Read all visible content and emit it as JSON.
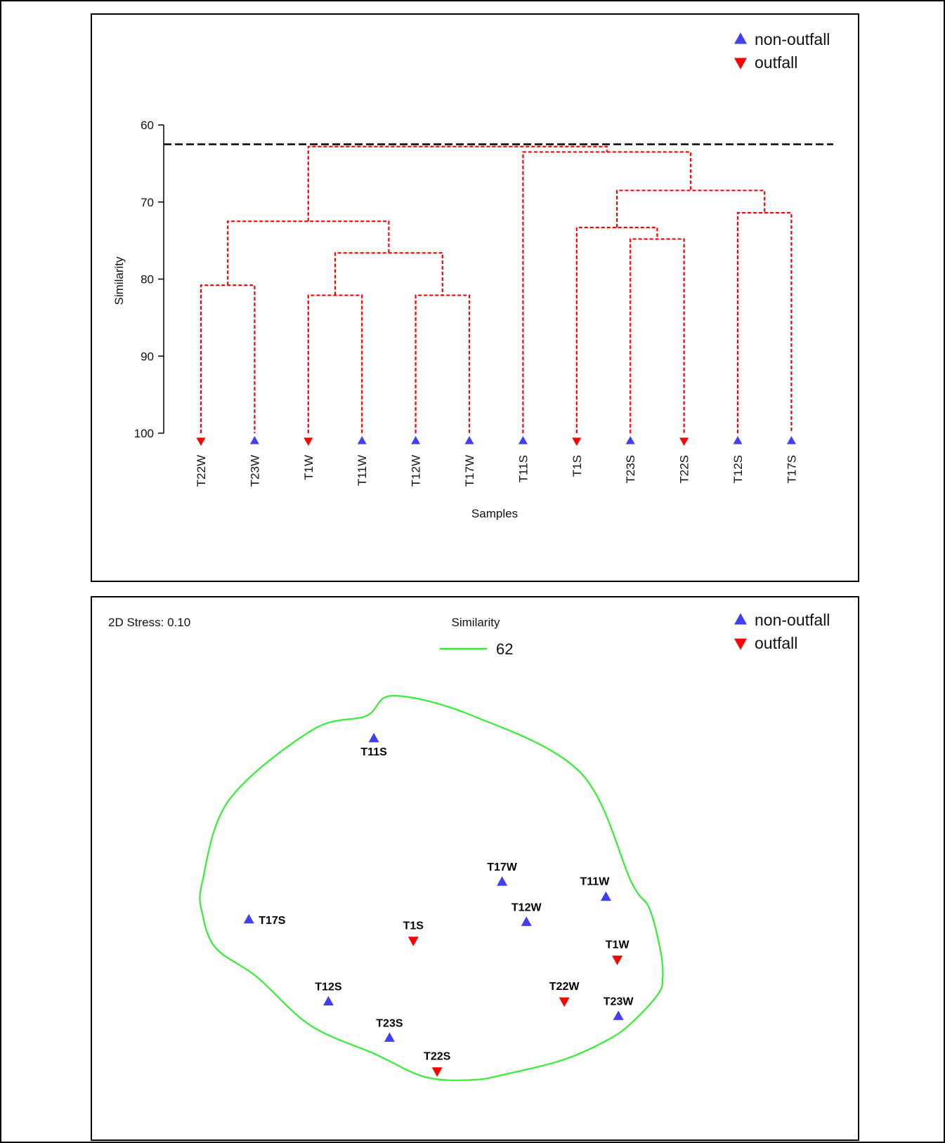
{
  "colors": {
    "non_outfall": "#4040f0",
    "outfall": "#ff0000",
    "dendrogram_line": "#ff0000",
    "cutoff_line": "#000000",
    "contour": "#33ee33",
    "frame": "#000000"
  },
  "chart_data": [
    {
      "type": "dendrogram",
      "ylabel": "Similarity",
      "xlabel": "Samples",
      "ylim": [
        60,
        100
      ],
      "y_reversed": true,
      "yticks": [
        60,
        70,
        80,
        90,
        100
      ],
      "cutoff_similarity": 62.5,
      "legend": {
        "placement": "top-right",
        "entries": [
          {
            "label": "non-outfall",
            "marker": "triangle-up",
            "group": "non_outfall"
          },
          {
            "label": "outfall",
            "marker": "triangle-down",
            "group": "outfall"
          }
        ]
      },
      "leaves": [
        {
          "label": "T22W",
          "group": "outfall"
        },
        {
          "label": "T23W",
          "group": "non_outfall"
        },
        {
          "label": "T1W",
          "group": "outfall"
        },
        {
          "label": "T11W",
          "group": "non_outfall"
        },
        {
          "label": "T12W",
          "group": "non_outfall"
        },
        {
          "label": "T17W",
          "group": "non_outfall"
        },
        {
          "label": "T11S",
          "group": "non_outfall"
        },
        {
          "label": "T1S",
          "group": "outfall"
        },
        {
          "label": "T23S",
          "group": "non_outfall"
        },
        {
          "label": "T22S",
          "group": "outfall"
        },
        {
          "label": "T12S",
          "group": "non_outfall"
        },
        {
          "label": "T17S",
          "group": "non_outfall"
        }
      ],
      "merges": [
        {
          "a": "T22W",
          "b": "T23W",
          "similarity": 80.8
        },
        {
          "a": "T1W",
          "b": "T11W",
          "similarity": 82.1
        },
        {
          "a": "T12W",
          "b": "T17W",
          "similarity": 82.1
        },
        {
          "a": [
            "T1W",
            "T11W"
          ],
          "b": [
            "T12W",
            "T17W"
          ],
          "similarity": 76.6
        },
        {
          "a": [
            "T22W",
            "T23W"
          ],
          "b": [
            "T1W",
            "T11W",
            "T12W",
            "T17W"
          ],
          "similarity": 72.5
        },
        {
          "a": "T23S",
          "b": "T22S",
          "similarity": 74.8
        },
        {
          "a": "T1S",
          "b": [
            "T23S",
            "T22S"
          ],
          "similarity": 73.3
        },
        {
          "a": "T12S",
          "b": "T17S",
          "similarity": 71.4
        },
        {
          "a": [
            "T1S",
            "T23S",
            "T22S"
          ],
          "b": [
            "T12S",
            "T17S"
          ],
          "similarity": 68.5
        },
        {
          "a": "T11S",
          "b": [
            "T1S",
            "T23S",
            "T22S",
            "T12S",
            "T17S"
          ],
          "similarity": 63.5
        },
        {
          "a": [
            "T22W",
            "T23W",
            "T1W",
            "T11W",
            "T12W",
            "T17W"
          ],
          "b": [
            "T11S",
            "T1S",
            "T23S",
            "T22S",
            "T12S",
            "T17S"
          ],
          "similarity": 62.8
        }
      ]
    },
    {
      "type": "scatter",
      "stress_text": "2D Stress: 0.10",
      "contour_legend": {
        "title": "Similarity",
        "value": "62"
      },
      "legend": {
        "placement": "top-right",
        "entries": [
          {
            "label": "non-outfall",
            "marker": "triangle-up",
            "group": "non_outfall"
          },
          {
            "label": "outfall",
            "marker": "triangle-down",
            "group": "outfall"
          }
        ]
      },
      "xlim": [
        0,
        100
      ],
      "ylim": [
        0,
        100
      ],
      "points": [
        {
          "label": "T11S",
          "group": "non_outfall",
          "x": 31.7,
          "y": 89.8,
          "label_pos": "below"
        },
        {
          "label": "T17W",
          "group": "non_outfall",
          "x": 55.4,
          "y": 55.5,
          "label_pos": "above"
        },
        {
          "label": "T11W",
          "group": "non_outfall",
          "x": 74.6,
          "y": 51.9,
          "label_pos": "above-left"
        },
        {
          "label": "T17S",
          "group": "non_outfall",
          "x": 8.6,
          "y": 46.5,
          "label_pos": "right"
        },
        {
          "label": "T12W",
          "group": "non_outfall",
          "x": 59.9,
          "y": 45.9,
          "label_pos": "above"
        },
        {
          "label": "T1S",
          "group": "outfall",
          "x": 39.0,
          "y": 41.5,
          "label_pos": "above"
        },
        {
          "label": "T1W",
          "group": "outfall",
          "x": 76.7,
          "y": 37.0,
          "label_pos": "above"
        },
        {
          "label": "T12S",
          "group": "non_outfall",
          "x": 23.3,
          "y": 26.9,
          "label_pos": "above"
        },
        {
          "label": "T22W",
          "group": "outfall",
          "x": 66.9,
          "y": 27.0,
          "label_pos": "above"
        },
        {
          "label": "T23W",
          "group": "non_outfall",
          "x": 76.9,
          "y": 23.4,
          "label_pos": "above"
        },
        {
          "label": "T23S",
          "group": "non_outfall",
          "x": 34.6,
          "y": 18.2,
          "label_pos": "above"
        },
        {
          "label": "T22S",
          "group": "outfall",
          "x": 43.4,
          "y": 10.3,
          "label_pos": "above"
        }
      ],
      "contour_62": [
        [
          0.0,
          55.5
        ],
        [
          4.9,
          75.0
        ],
        [
          20.3,
          91.8
        ],
        [
          30.3,
          95.2
        ],
        [
          35.3,
          100.0
        ],
        [
          50.0,
          95.2
        ],
        [
          70.0,
          81.5
        ],
        [
          79.3,
          55.5
        ],
        [
          82.6,
          49.3
        ],
        [
          84.7,
          39.0
        ],
        [
          85.1,
          32.9
        ],
        [
          84.3,
          28.8
        ],
        [
          79.4,
          21.9
        ],
        [
          75.0,
          17.8
        ],
        [
          66.7,
          13.0
        ],
        [
          56.2,
          9.6
        ],
        [
          50.0,
          8.2
        ],
        [
          41.2,
          8.9
        ],
        [
          31.9,
          14.4
        ],
        [
          20.0,
          21.2
        ],
        [
          10.0,
          32.9
        ],
        [
          2.5,
          39.7
        ],
        [
          0.0,
          48.0
        ]
      ]
    }
  ]
}
